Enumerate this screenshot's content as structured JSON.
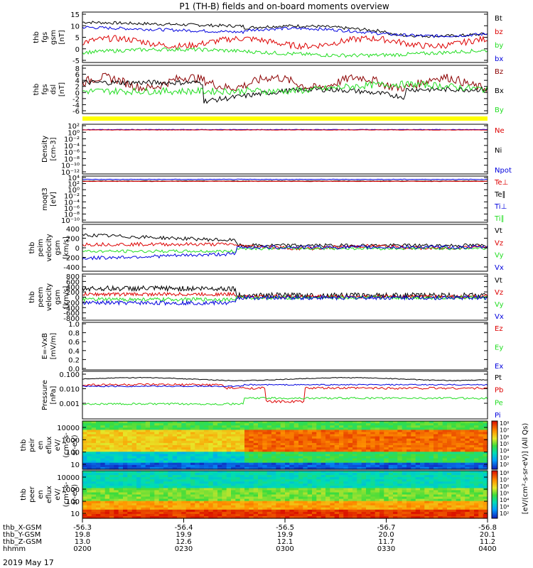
{
  "title": "P1 (TH-B) fields and on-board moments overview",
  "date_label": "2019 May 17",
  "colors": {
    "black": "#000000",
    "red": "#dd0000",
    "green": "#22dd22",
    "blue": "#0000dd",
    "darkred": "#8b0000",
    "yellow": "#ffff00"
  },
  "chart_data": [
    {
      "type": "line",
      "ylabel": [
        "thb",
        "fgs",
        "gsm",
        "[nT]"
      ],
      "yticks": [
        "15",
        "10",
        "5",
        "0",
        "-5"
      ],
      "ylim": [
        -5,
        15
      ],
      "series": [
        {
          "name": "Bt",
          "color": "black"
        },
        {
          "name": "bz",
          "color": "red"
        },
        {
          "name": "by",
          "color": "green"
        },
        {
          "name": "bx",
          "color": "blue"
        }
      ]
    },
    {
      "type": "line",
      "ylabel": [
        "thb",
        "fgs",
        "dsl",
        "[nT]"
      ],
      "yticks": [
        "8",
        "6",
        "4",
        "2",
        "0",
        "-2",
        "-4",
        "-6"
      ],
      "ylim": [
        -6,
        8
      ],
      "series": [
        {
          "name": "Bz",
          "color": "darkred"
        },
        {
          "name": "Bx",
          "color": "black"
        },
        {
          "name": "By",
          "color": "green"
        }
      ]
    },
    {
      "type": "line",
      "ylabel": [
        "Density",
        "[cm-3]"
      ],
      "yticks": [
        "10²",
        "10⁰",
        "10⁻²",
        "10⁻⁴",
        "10⁻⁶",
        "10⁻⁸",
        "10⁻¹⁰",
        "10⁻¹²"
      ],
      "ylim": [
        -12,
        2
      ],
      "series": [
        {
          "name": "Ne",
          "color": "red"
        },
        {
          "name": "Ni",
          "color": "black"
        },
        {
          "name": "Npot",
          "color": "blue"
        }
      ]
    },
    {
      "type": "line",
      "ylabel": [
        "moqt3",
        "[eV]"
      ],
      "yticks": [
        "10⁴",
        "10²",
        "10⁰",
        "10⁻²",
        "10⁻⁴",
        "10⁻⁶",
        "10⁻⁸",
        "10⁻¹⁰"
      ],
      "ylim": [
        -10,
        4
      ],
      "series": [
        {
          "name": "Te⊥",
          "color": "red"
        },
        {
          "name": "Te∥",
          "color": "black"
        },
        {
          "name": "Ti⊥",
          "color": "blue"
        },
        {
          "name": "Ti∥",
          "color": "green"
        }
      ]
    },
    {
      "type": "line",
      "ylabel": [
        "thb",
        "peim",
        "velocity",
        "gsm",
        "[km/s]"
      ],
      "yticks": [
        "400",
        "200",
        "0",
        "-200",
        "-400"
      ],
      "ylim": [
        -400,
        400
      ],
      "series": [
        {
          "name": "Vt",
          "color": "black"
        },
        {
          "name": "Vz",
          "color": "red"
        },
        {
          "name": "Vy",
          "color": "green"
        },
        {
          "name": "Vx",
          "color": "blue"
        }
      ]
    },
    {
      "type": "line",
      "ylabel": [
        "thb",
        "peem",
        "velocity",
        "gsm",
        "[km/s]"
      ],
      "yticks": [
        "800",
        "600",
        "400",
        "200",
        "0",
        "-200",
        "-400",
        "-600",
        "-800"
      ],
      "ylim": [
        -800,
        800
      ],
      "series": [
        {
          "name": "Vt",
          "color": "black"
        },
        {
          "name": "Vz",
          "color": "red"
        },
        {
          "name": "Vy",
          "color": "green"
        },
        {
          "name": "Vx",
          "color": "blue"
        }
      ]
    },
    {
      "type": "line",
      "ylabel": [
        "E=-VxB",
        "[mV/m]"
      ],
      "yticks": [
        "1.0",
        "0.8",
        "0.6",
        "0.4",
        "0.2",
        "0.0"
      ],
      "ylim": [
        0,
        1
      ],
      "series": [
        {
          "name": "Ez",
          "color": "red"
        },
        {
          "name": "Ey",
          "color": "green"
        },
        {
          "name": "Ex",
          "color": "blue"
        }
      ]
    },
    {
      "type": "line",
      "ylabel": [
        "Pressure",
        "[nPa]"
      ],
      "yticks": [
        "0.100",
        "0.010",
        "0.001"
      ],
      "ylim": [
        0.0005,
        0.15
      ],
      "series": [
        {
          "name": "Pt",
          "color": "black"
        },
        {
          "name": "Pb",
          "color": "red"
        },
        {
          "name": "Pe",
          "color": "green"
        },
        {
          "name": "Pi",
          "color": "blue"
        }
      ]
    },
    {
      "type": "heatmap",
      "ylabel": [
        "thb",
        "peir",
        "en",
        "eflux",
        "eV/",
        "(cm²-s-",
        "sr-eV)"
      ],
      "yticks": [
        "10000",
        "1000",
        "100",
        "10"
      ],
      "ylim": [
        5,
        20000
      ]
    },
    {
      "type": "heatmap",
      "ylabel": [
        "thb",
        "peer",
        "en",
        "eflux",
        "eV/",
        "(cm²-s-",
        "sr-eV)"
      ],
      "yticks": [
        "10000",
        "1000",
        "100",
        "10"
      ],
      "ylim": [
        5,
        20000
      ]
    },
    {
      "type": "colorbar",
      "label": "[eV/(cm²-s-sr-eV)] (All Qs)",
      "ticks": [
        "10⁸",
        "10⁷",
        "10⁶",
        "10⁵",
        "10⁴",
        "10³",
        "10²"
      ],
      "ticks2": [
        "10⁸",
        "10⁷",
        "10⁶",
        "10⁵",
        "10⁴",
        "10³",
        "10²"
      ]
    }
  ],
  "time_axis": {
    "row_labels": [
      "thb_X-GSM",
      "thb_Y-GSM",
      "thb_Z-GSM",
      "hhmm"
    ],
    "columns": [
      {
        "x": "-56.3",
        "y": "19.8",
        "z": "13.0",
        "hhmm": "0200"
      },
      {
        "x": "-56.4",
        "y": "19.9",
        "z": "12.6",
        "hhmm": "0230"
      },
      {
        "x": "-56.5",
        "y": "19.9",
        "z": "12.1",
        "hhmm": "0300"
      },
      {
        "x": "-56.7",
        "y": "20.0",
        "z": "11.7",
        "hhmm": "0330"
      },
      {
        "x": "-56.8",
        "y": "20.1",
        "z": "11.2",
        "hhmm": "0400"
      }
    ]
  }
}
